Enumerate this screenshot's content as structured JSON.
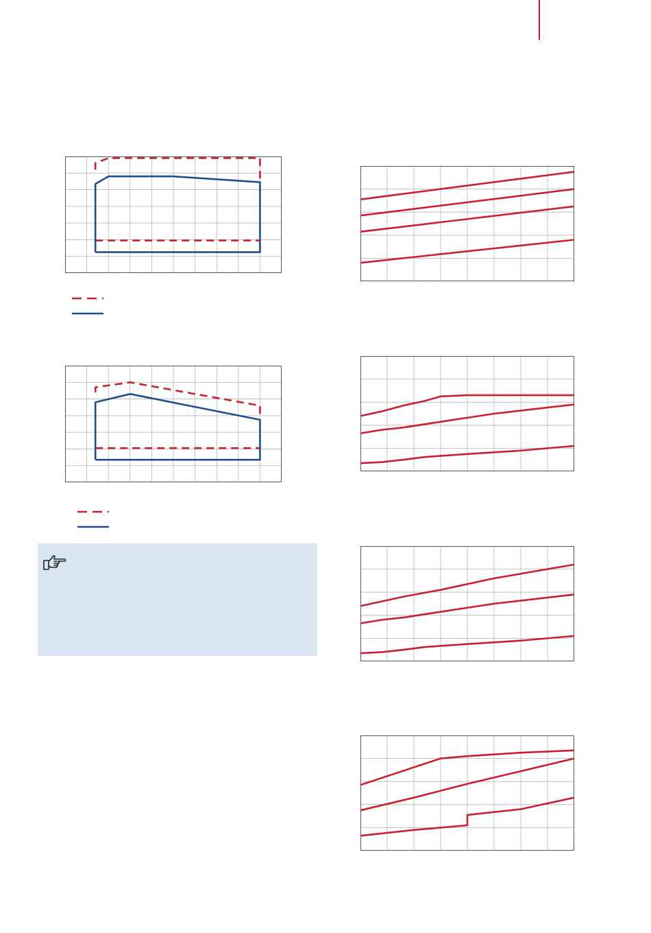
{
  "page": {
    "rule_color": "#c0172c",
    "note_background": "#d9e5f0",
    "note_icon": "pointing-hand-icon",
    "note_text": ""
  },
  "colors": {
    "red": "#c8202f",
    "blue": "#1f4e8f",
    "grid": "#b4b4b4",
    "frame": "#555555"
  },
  "legends": [
    {
      "entries": [
        {
          "style": "dashed",
          "color": "red",
          "label": ""
        },
        {
          "style": "solid",
          "color": "blue",
          "label": ""
        }
      ]
    },
    {
      "entries": [
        {
          "style": "dashed",
          "color": "red",
          "label": ""
        },
        {
          "style": "solid",
          "color": "blue",
          "label": ""
        }
      ]
    }
  ],
  "chart_data": [
    {
      "type": "line",
      "title": "",
      "xlabel": "",
      "ylabel": "",
      "xlim": [
        0,
        10
      ],
      "ylim": [
        0,
        7
      ],
      "grid": true,
      "legend": "below",
      "series": [
        {
          "style": "dashed",
          "color": "red",
          "x": [
            1.4,
            1.4,
            2.0,
            9.0,
            9.0
          ],
          "y": [
            6.2,
            6.6,
            6.9,
            6.9,
            5.4
          ]
        },
        {
          "style": "dashed",
          "color": "red",
          "x": [
            1.4,
            9.0
          ],
          "y": [
            1.95,
            1.95
          ]
        },
        {
          "style": "solid",
          "color": "blue",
          "x": [
            1.4,
            1.4,
            2.0,
            5.0,
            9.0,
            9.0,
            1.4
          ],
          "y": [
            1.25,
            5.35,
            5.8,
            5.8,
            5.45,
            1.25,
            1.25
          ]
        }
      ]
    },
    {
      "type": "line",
      "title": "",
      "xlabel": "",
      "ylabel": "",
      "xlim": [
        0,
        10
      ],
      "ylim": [
        0,
        7
      ],
      "grid": true,
      "legend": "below",
      "series": [
        {
          "style": "dashed",
          "color": "red",
          "x": [
            1.4,
            1.4,
            3.0,
            9.0,
            9.0
          ],
          "y": [
            5.4,
            5.7,
            6.0,
            4.6,
            4.1
          ]
        },
        {
          "style": "dashed",
          "color": "red",
          "x": [
            1.4,
            9.0
          ],
          "y": [
            2.05,
            2.05
          ]
        },
        {
          "style": "solid",
          "color": "blue",
          "x": [
            1.4,
            1.4,
            3.0,
            9.0,
            9.0,
            1.4
          ],
          "y": [
            1.35,
            4.8,
            5.3,
            3.75,
            1.35,
            1.35
          ]
        }
      ]
    },
    {
      "type": "line",
      "title": "",
      "xlabel": "",
      "ylabel": "",
      "xlim": [
        0,
        8
      ],
      "ylim": [
        0,
        5
      ],
      "grid": true,
      "legend": "none",
      "series": [
        {
          "color": "red",
          "x": [
            0,
            8
          ],
          "y": [
            3.55,
            4.75
          ]
        },
        {
          "color": "red",
          "x": [
            0,
            8
          ],
          "y": [
            2.85,
            4.0
          ]
        },
        {
          "color": "red",
          "x": [
            0,
            8
          ],
          "y": [
            2.15,
            3.25
          ]
        },
        {
          "color": "red",
          "x": [
            0,
            8
          ],
          "y": [
            0.8,
            1.8
          ]
        }
      ]
    },
    {
      "type": "line",
      "title": "",
      "xlabel": "",
      "ylabel": "",
      "xlim": [
        0,
        8
      ],
      "ylim": [
        0,
        5
      ],
      "grid": true,
      "legend": "none",
      "series": [
        {
          "color": "red",
          "x": [
            0,
            0.8,
            1.6,
            2.4,
            3.0,
            4.0,
            6.0,
            8.0
          ],
          "y": [
            2.4,
            2.6,
            2.85,
            3.05,
            3.25,
            3.3,
            3.3,
            3.3
          ]
        },
        {
          "color": "red",
          "x": [
            0,
            0.8,
            1.6,
            3.0,
            5.0,
            8.0
          ],
          "y": [
            1.65,
            1.8,
            1.9,
            2.15,
            2.5,
            2.9
          ]
        },
        {
          "color": "red",
          "x": [
            0,
            0.8,
            1.6,
            2.4,
            4.0,
            6.0,
            8.0
          ],
          "y": [
            0.35,
            0.4,
            0.5,
            0.62,
            0.75,
            0.9,
            1.1
          ]
        }
      ]
    },
    {
      "type": "line",
      "title": "",
      "xlabel": "",
      "ylabel": "",
      "xlim": [
        0,
        8
      ],
      "ylim": [
        0,
        5
      ],
      "grid": true,
      "legend": "none",
      "series": [
        {
          "color": "red",
          "x": [
            0,
            0.8,
            1.6,
            3.0,
            5.0,
            8.0
          ],
          "y": [
            2.4,
            2.6,
            2.8,
            3.1,
            3.6,
            4.2
          ]
        },
        {
          "color": "red",
          "x": [
            0,
            0.8,
            1.6,
            3.0,
            5.0,
            8.0
          ],
          "y": [
            1.65,
            1.8,
            1.9,
            2.15,
            2.5,
            2.9
          ]
        },
        {
          "color": "red",
          "x": [
            0,
            0.8,
            1.6,
            2.4,
            4.0,
            6.0,
            8.0
          ],
          "y": [
            0.35,
            0.4,
            0.5,
            0.62,
            0.75,
            0.9,
            1.1
          ]
        }
      ]
    },
    {
      "type": "line",
      "title": "",
      "xlabel": "",
      "ylabel": "",
      "xlim": [
        0,
        8
      ],
      "ylim": [
        0,
        5
      ],
      "grid": true,
      "legend": "none",
      "series": [
        {
          "color": "red",
          "x": [
            0,
            3.0,
            4.0,
            6.0,
            8.0
          ],
          "y": [
            2.85,
            4.0,
            4.1,
            4.25,
            4.35
          ]
        },
        {
          "color": "red",
          "x": [
            0,
            2.0,
            4.0,
            6.0,
            8.0
          ],
          "y": [
            1.75,
            2.3,
            2.9,
            3.45,
            4.0
          ]
        },
        {
          "color": "red",
          "x": [
            0,
            2.0,
            4.0,
            4.0,
            6.0,
            8.0
          ],
          "y": [
            0.65,
            0.9,
            1.1,
            1.55,
            1.8,
            2.3
          ]
        }
      ]
    }
  ]
}
